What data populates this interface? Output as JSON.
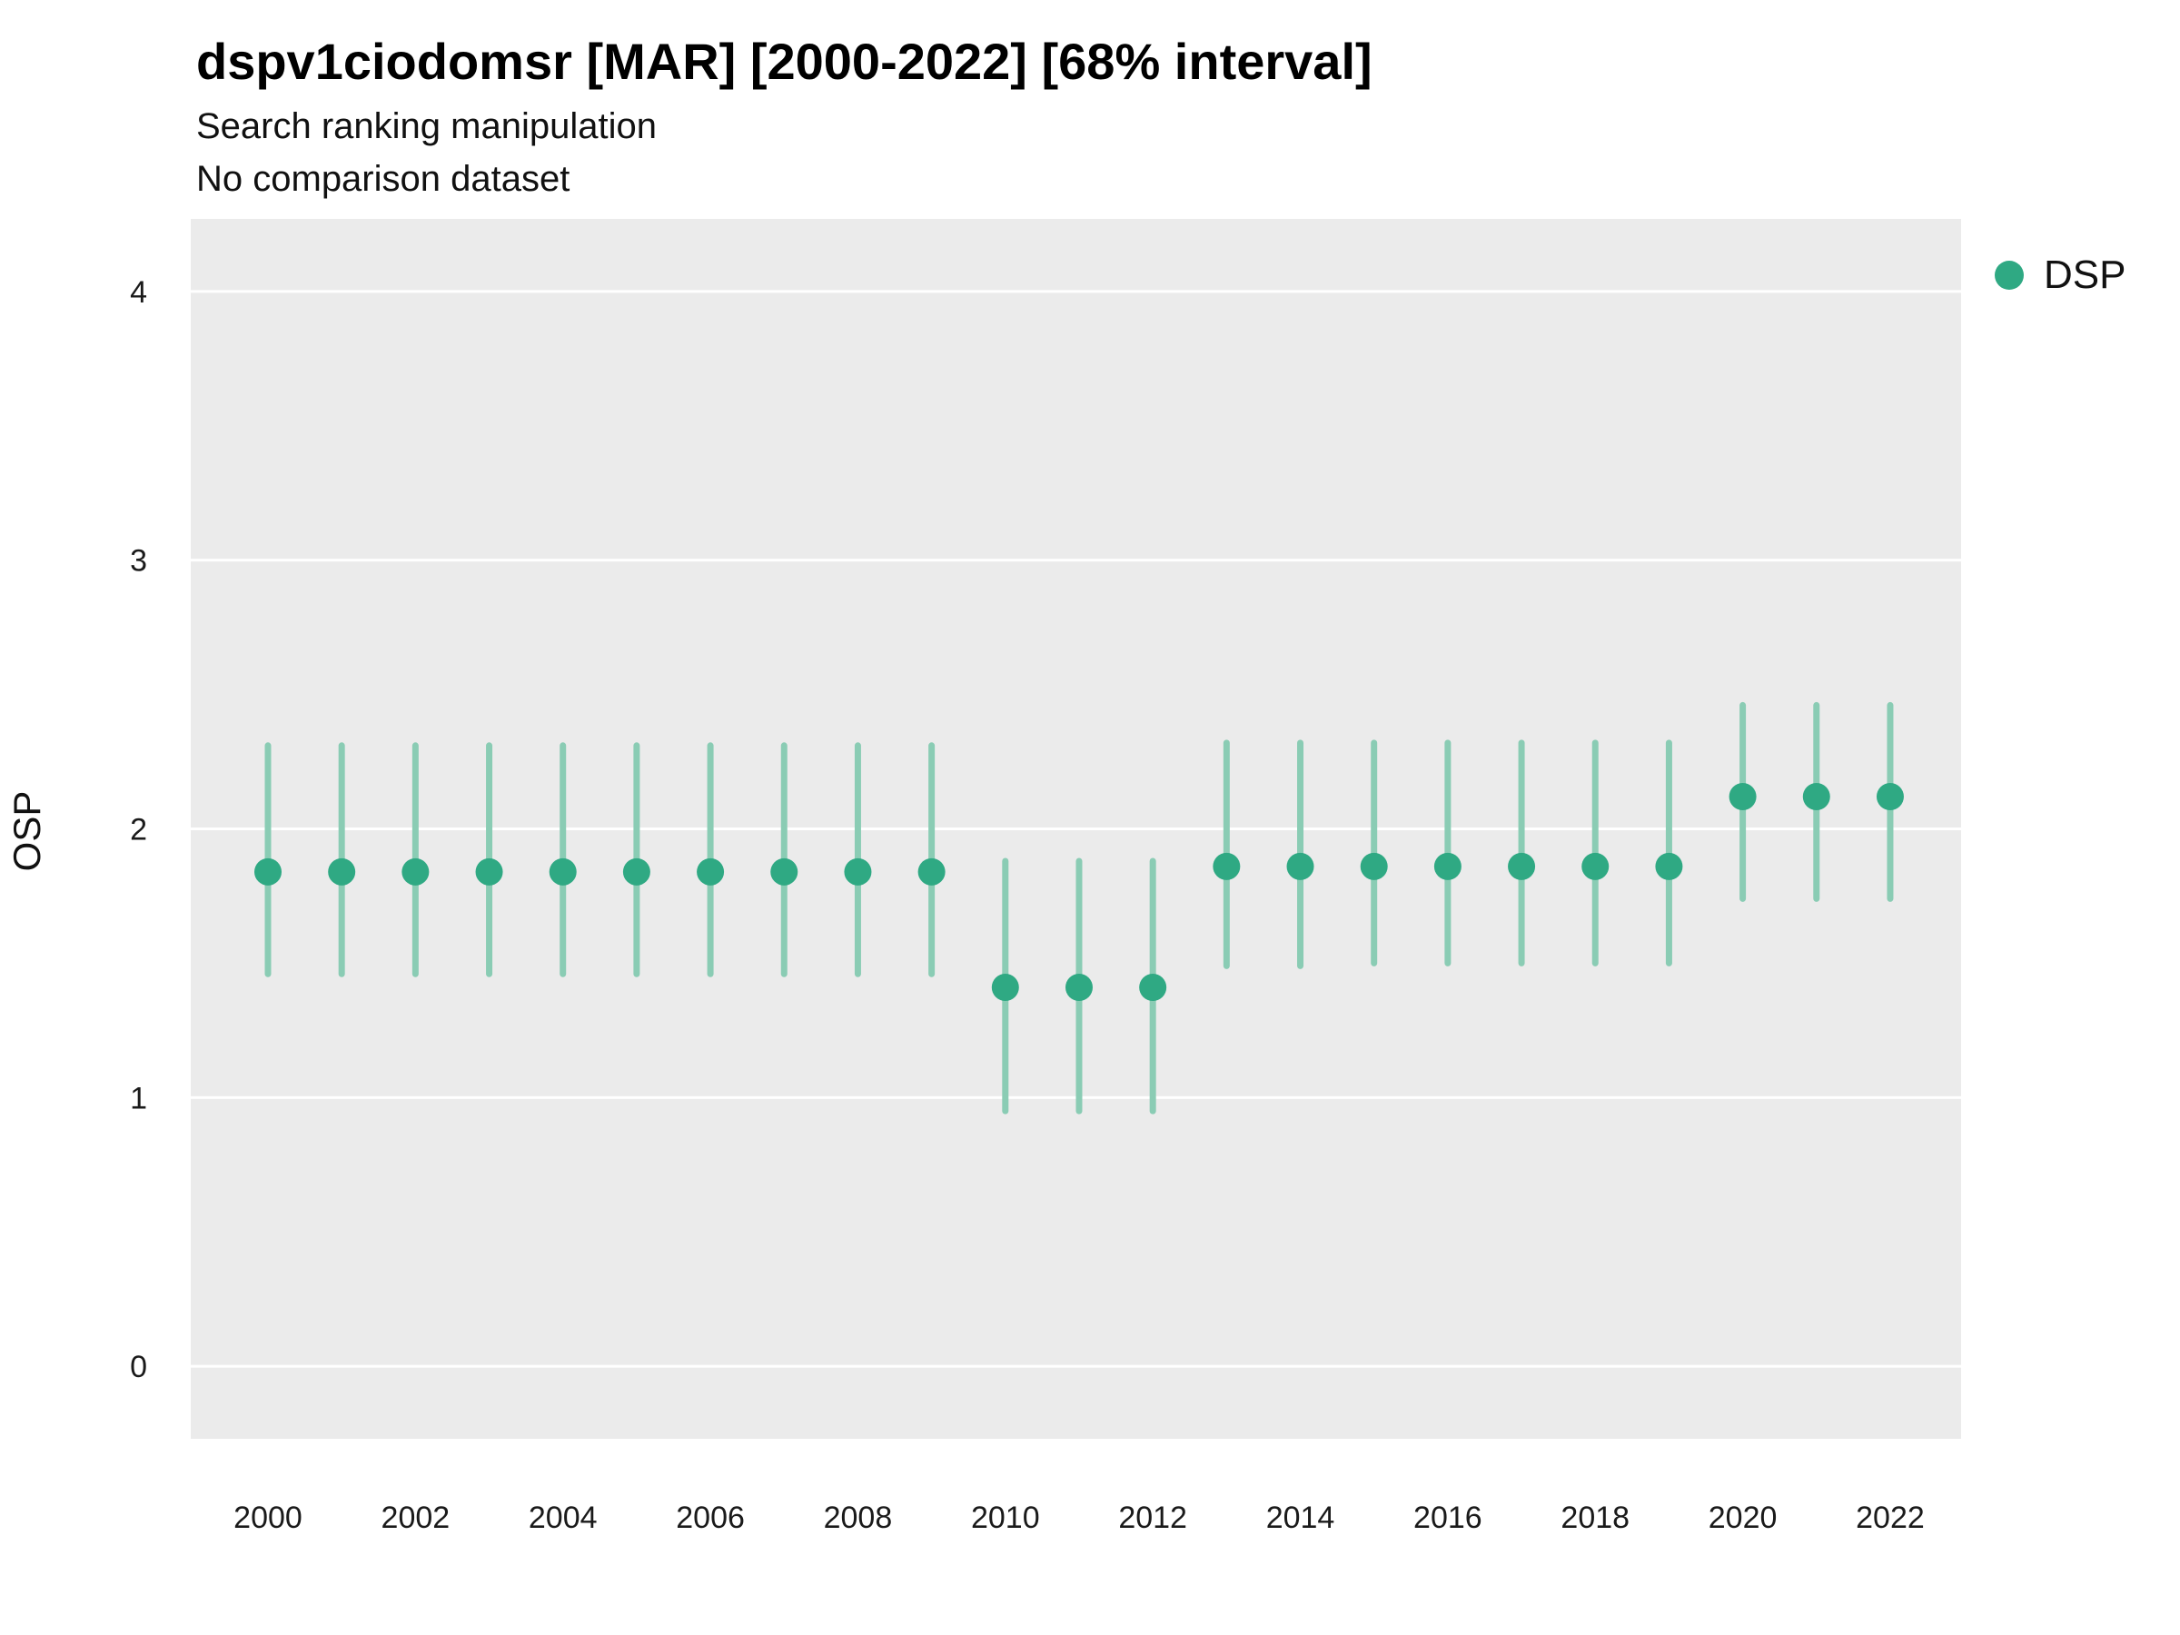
{
  "chart_data": {
    "type": "scatter",
    "title": "dspv1ciodomsr [MAR] [2000-2022] [68% interval]",
    "subtitle": "Search ranking manipulation",
    "subtitle2": "No comparison dataset",
    "xlabel": "",
    "ylabel": "OSP",
    "legend": {
      "label": "DSP",
      "position": "right-top"
    },
    "interval_label": "68% interval",
    "x": [
      2000,
      2001,
      2002,
      2003,
      2004,
      2005,
      2006,
      2007,
      2008,
      2009,
      2010,
      2011,
      2012,
      2013,
      2014,
      2015,
      2016,
      2017,
      2018,
      2019,
      2020,
      2021,
      2022
    ],
    "series": [
      {
        "name": "DSP",
        "estimates": [
          1.84,
          1.84,
          1.84,
          1.84,
          1.84,
          1.84,
          1.84,
          1.84,
          1.84,
          1.84,
          1.41,
          1.41,
          1.41,
          1.86,
          1.86,
          1.86,
          1.86,
          1.86,
          1.86,
          1.86,
          2.12,
          2.12,
          2.12
        ],
        "lower_68": [
          1.46,
          1.46,
          1.46,
          1.46,
          1.46,
          1.46,
          1.46,
          1.46,
          1.46,
          1.46,
          0.95,
          0.95,
          0.95,
          1.49,
          1.49,
          1.5,
          1.5,
          1.5,
          1.5,
          1.5,
          1.74,
          1.74,
          1.74
        ],
        "upper_68": [
          2.31,
          2.31,
          2.31,
          2.31,
          2.31,
          2.31,
          2.31,
          2.31,
          2.31,
          2.31,
          1.88,
          1.88,
          1.88,
          2.32,
          2.32,
          2.32,
          2.32,
          2.32,
          2.32,
          2.32,
          2.46,
          2.46,
          2.46
        ]
      }
    ],
    "x_ticks": [
      2000,
      2002,
      2004,
      2006,
      2008,
      2010,
      2012,
      2014,
      2016,
      2018,
      2020,
      2022
    ],
    "y_ticks": [
      0,
      1,
      2,
      3,
      4
    ],
    "ylim": [
      -0.27,
      4.27
    ],
    "grid": "horizontal-white-major",
    "legend_position": "right-top",
    "colors": {
      "point": "#2fa983",
      "interval": "#8accb4",
      "panel_bg": "#ebebeb",
      "gridline": "#ffffff",
      "tick_text": "#1a1a1a"
    }
  }
}
